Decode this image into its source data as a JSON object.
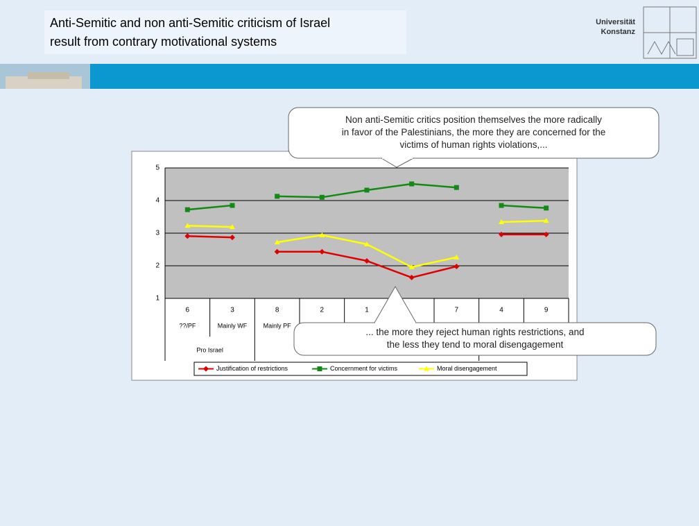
{
  "header": {
    "title": [
      "Anti-Semitic and non anti-Semitic criticism of Israel",
      "result from contrary motivational systems"
    ],
    "logo": [
      "Universität",
      "Konstanz"
    ]
  },
  "callouts": [
    {
      "lines": [
        "Non anti-Semitic critics position themselves the more radically",
        "in favor of the Palestinians, the more they are concerned for the",
        "victims of human rights violations,..."
      ]
    },
    {
      "lines": [
        "... the more they reject human rights restrictions, and",
        "the less they tend to moral disengagement"
      ]
    }
  ],
  "chart_data": {
    "type": "line",
    "categories": [
      "6",
      "3",
      "8",
      "2",
      "1",
      null,
      "7",
      "4",
      "9"
    ],
    "sub_categories": [
      "??/PF",
      "Mainly WF",
      "Mainly PF",
      null,
      null,
      null,
      null,
      null,
      null
    ],
    "groups": [
      {
        "label": "Pro Israel",
        "size": 2
      },
      {
        "label": null,
        "size": 5
      },
      {
        "label": null,
        "size": 2
      }
    ],
    "series": [
      {
        "name": "Justification of restrictions",
        "color": "#e00000",
        "marker": "diamond",
        "values": [
          2.91,
          2.87,
          2.43,
          2.43,
          2.15,
          1.64,
          1.98,
          2.96,
          2.96
        ]
      },
      {
        "name": "Concernment for victims",
        "color": "#138a13",
        "marker": "square",
        "values": [
          3.72,
          3.85,
          4.13,
          4.1,
          4.32,
          4.51,
          4.4,
          3.85,
          3.77
        ]
      },
      {
        "name": "Moral disengagement",
        "color": "#ffff00",
        "marker": "triangle",
        "values": [
          3.23,
          3.19,
          2.72,
          2.94,
          2.66,
          1.96,
          2.26,
          3.34,
          3.38
        ]
      }
    ],
    "ylim": [
      1,
      5
    ],
    "yticks": [
      1,
      2,
      3,
      4,
      5
    ],
    "grid": true
  }
}
